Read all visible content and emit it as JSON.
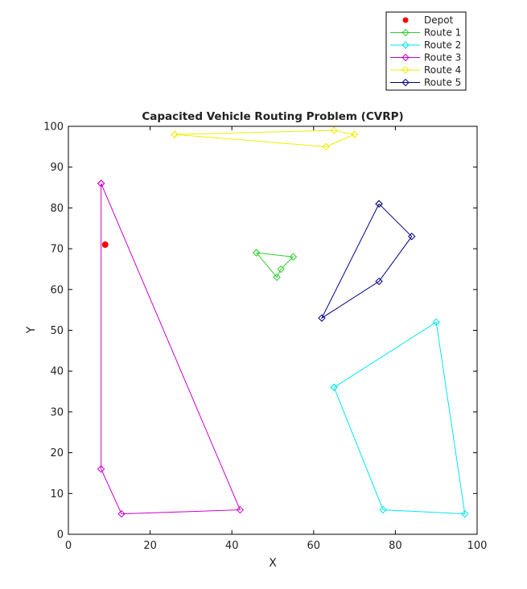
{
  "chart_data": {
    "type": "line",
    "title": "Capacited Vehicle Routing Problem (CVRP)",
    "xlabel": "X",
    "ylabel": "Y",
    "xlim": [
      0,
      100
    ],
    "ylim": [
      0,
      100
    ],
    "xticks": [
      0,
      20,
      40,
      60,
      80,
      100
    ],
    "yticks": [
      0,
      10,
      20,
      30,
      40,
      50,
      60,
      70,
      80,
      90,
      100
    ],
    "grid": false,
    "legend_position": "top-right, outside plot area",
    "depot": {
      "name": "Depot",
      "x": 9,
      "y": 71,
      "color": "#ff0000",
      "marker": "filled-circle"
    },
    "series": [
      {
        "name": "Route 1",
        "color": "#33cc33",
        "marker": "diamond",
        "points": [
          [
            46,
            69
          ],
          [
            55,
            68
          ],
          [
            52,
            65
          ],
          [
            51,
            63
          ],
          [
            46,
            69
          ]
        ]
      },
      {
        "name": "Route 2",
        "color": "#00e5ee",
        "marker": "diamond",
        "points": [
          [
            65,
            36
          ],
          [
            90,
            52
          ],
          [
            97,
            5
          ],
          [
            77,
            6
          ],
          [
            65,
            36
          ]
        ]
      },
      {
        "name": "Route 3",
        "color": "#cc00cc",
        "marker": "diamond",
        "points": [
          [
            8,
            86
          ],
          [
            42,
            6
          ],
          [
            13,
            5
          ],
          [
            8,
            16
          ],
          [
            8,
            86
          ]
        ]
      },
      {
        "name": "Route 4",
        "color": "#eeee00",
        "marker": "diamond",
        "points": [
          [
            26,
            98
          ],
          [
            65,
            99
          ],
          [
            70,
            98
          ],
          [
            63,
            95
          ],
          [
            26,
            98
          ]
        ]
      },
      {
        "name": "Route 5",
        "color": "#000080",
        "marker": "diamond",
        "points": [
          [
            76,
            81
          ],
          [
            84,
            73
          ],
          [
            76,
            62
          ],
          [
            62,
            53
          ],
          [
            76,
            81
          ]
        ]
      }
    ]
  }
}
